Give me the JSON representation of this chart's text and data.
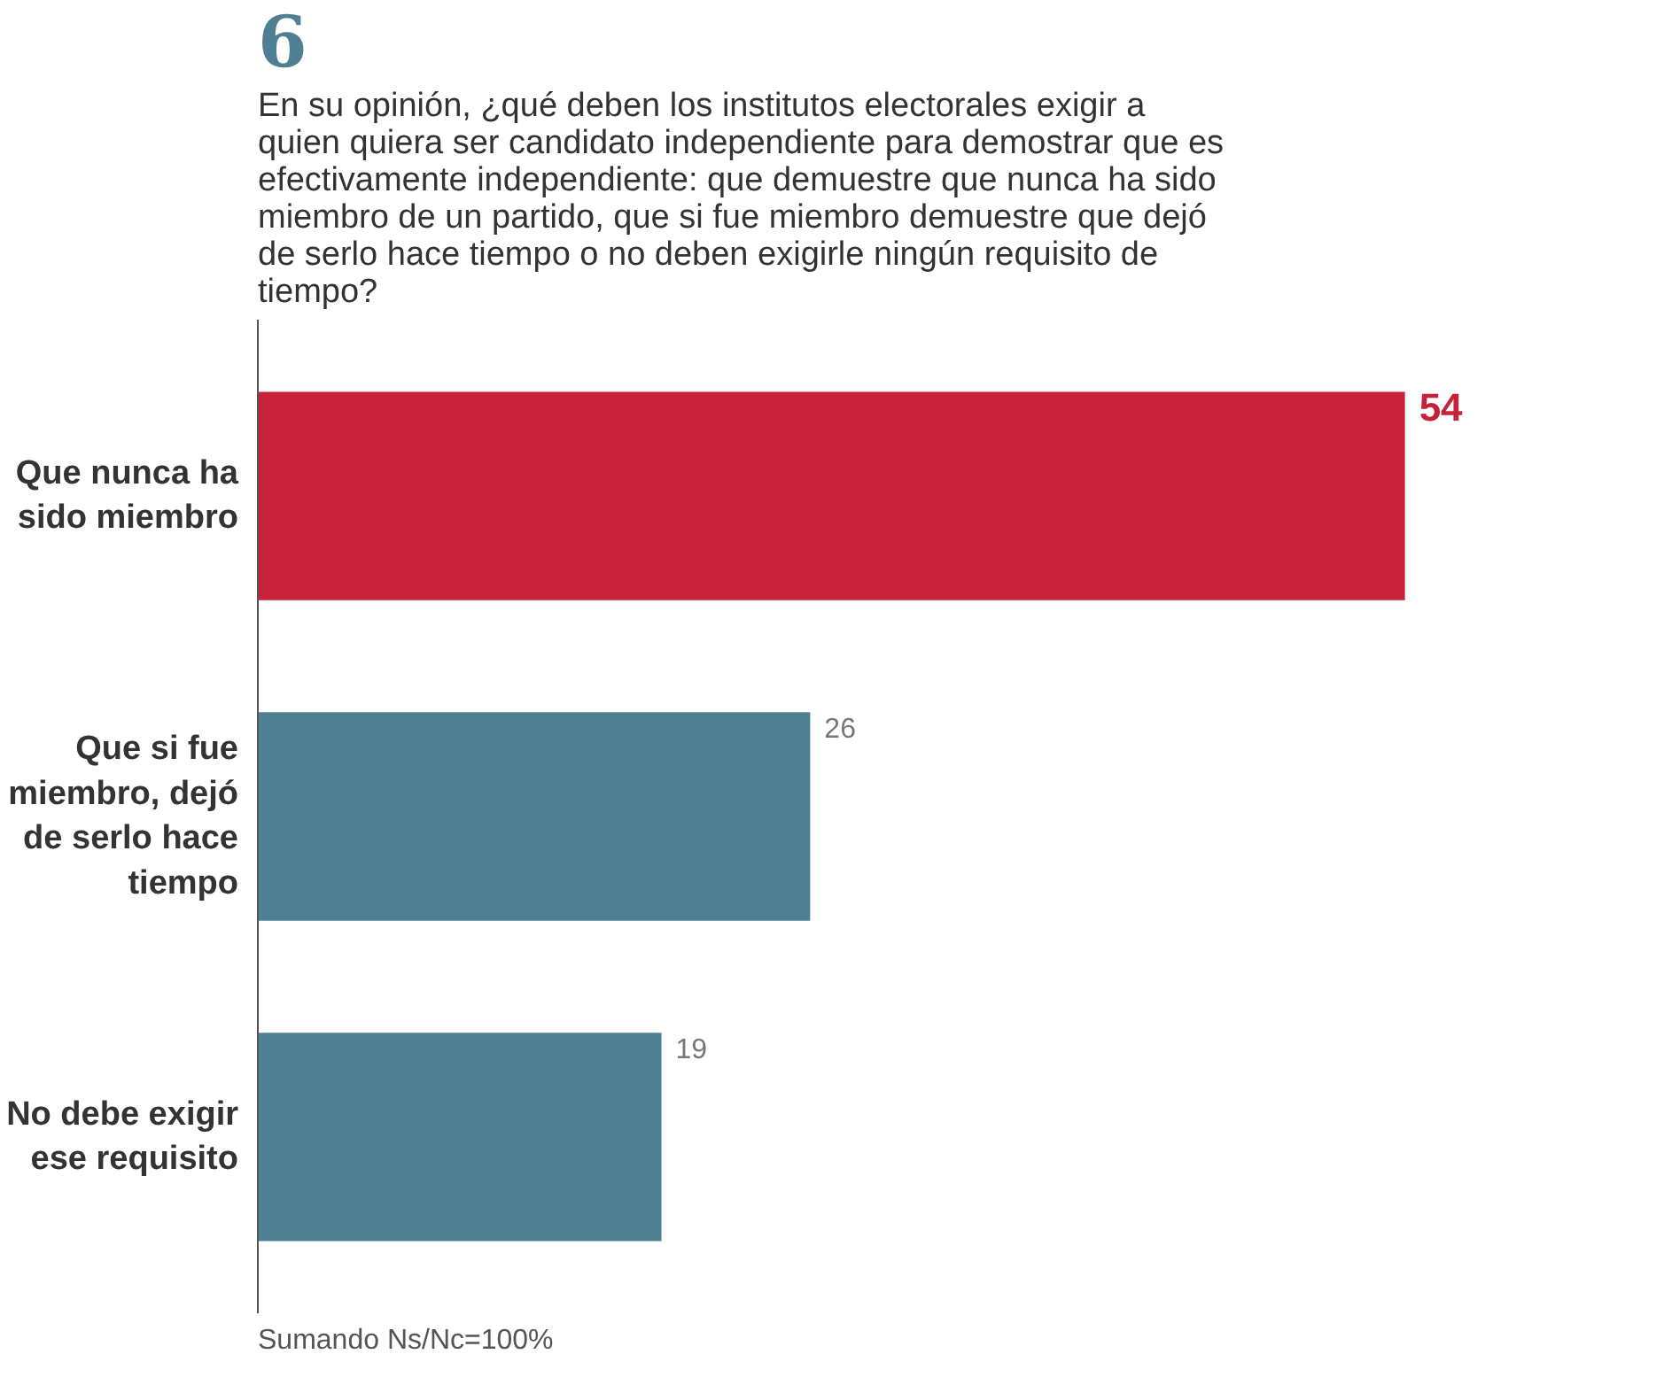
{
  "chart_data": {
    "type": "bar",
    "orientation": "horizontal",
    "title": "En su opinión, ¿qué deben los institutos electorales exigir a quien quiera ser candidato independiente para demostrar que es efectivamente independiente: que demuestre que nunca ha sido miembro de un partido, que si fue miembro demuestre que dejó de serlo hace tiempo o no deben exigirle ningún requisito de tiempo?",
    "categories": [
      "Que nunca ha sido miembro",
      "Que si fue miembro, dejó de serlo hace tiempo",
      "No debe exigir ese requisito"
    ],
    "values": [
      54,
      26,
      19
    ],
    "colors": [
      "#c8213a",
      "#4f7f92",
      "#4f7f92"
    ],
    "data_labels": true,
    "annotations": [
      "6",
      "Sumando Ns/Nc=100%"
    ]
  }
}
